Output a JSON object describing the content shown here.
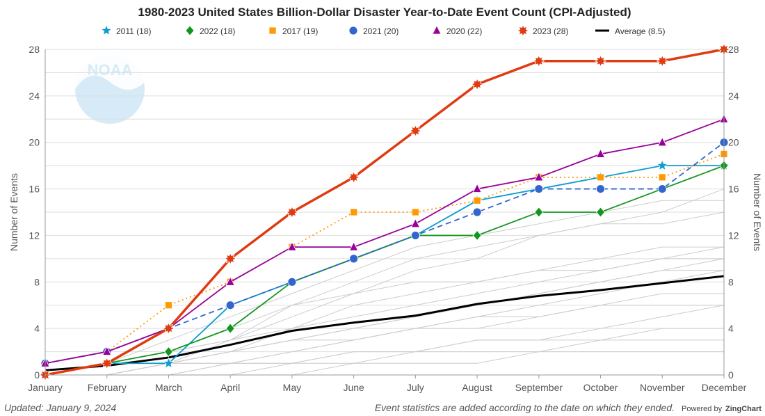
{
  "chart_data": {
    "type": "line",
    "title": "1980-2023 United States Billion-Dollar Disaster Year-to-Date Event Count (CPI-Adjusted)",
    "ylabel": "Number of Events",
    "ylabel_right": "Number of Events",
    "categories": [
      "January",
      "February",
      "March",
      "April",
      "May",
      "June",
      "July",
      "August",
      "September",
      "October",
      "November",
      "December"
    ],
    "ylim": [
      0,
      28
    ],
    "yticks": [
      0,
      4,
      8,
      12,
      16,
      20,
      24,
      28
    ],
    "grid": true,
    "legend_position": "top",
    "series": [
      {
        "name": "2011 (18)",
        "color": "#0c9ccf",
        "marker": "star",
        "dash": "solid",
        "values": [
          0,
          1,
          1,
          6,
          8,
          10,
          12,
          15,
          16,
          17,
          18,
          18
        ]
      },
      {
        "name": "2022 (18)",
        "color": "#14961e",
        "marker": "diamond",
        "dash": "solid",
        "values": [
          0,
          1,
          2,
          4,
          8,
          10,
          12,
          12,
          14,
          14,
          16,
          18
        ]
      },
      {
        "name": "2017 (19)",
        "color": "#ff9900",
        "marker": "square",
        "dash": "dotted",
        "values": [
          1,
          2,
          6,
          8,
          11,
          14,
          14,
          15,
          17,
          17,
          17,
          19
        ]
      },
      {
        "name": "2021 (20)",
        "color": "#3366cc",
        "marker": "circle",
        "dash": "dashed",
        "values": [
          1,
          2,
          4,
          6,
          8,
          10,
          12,
          14,
          16,
          16,
          16,
          20
        ]
      },
      {
        "name": "2020 (22)",
        "color": "#990099",
        "marker": "triangle",
        "dash": "solid",
        "values": [
          1,
          2,
          4,
          8,
          11,
          11,
          13,
          16,
          17,
          19,
          20,
          22
        ]
      },
      {
        "name": "2023 (28)",
        "color": "#e03a10",
        "marker": "burst",
        "dash": "solid",
        "values": [
          0,
          1,
          4,
          10,
          14,
          17,
          21,
          25,
          27,
          27,
          27,
          28
        ]
      },
      {
        "name": "Average (8.5)",
        "color": "#000000",
        "marker": "none",
        "dash": "solid",
        "values": [
          0.4,
          0.8,
          1.5,
          2.6,
          3.8,
          4.5,
          5.1,
          6.1,
          6.8,
          7.3,
          7.9,
          8.5
        ]
      }
    ],
    "background_series_color": "#cccccc",
    "background_series": [
      [
        0,
        0,
        1,
        2,
        3,
        4,
        5,
        6,
        7,
        8,
        9,
        10
      ],
      [
        0,
        1,
        2,
        3,
        5,
        7,
        9,
        10,
        12,
        13,
        14,
        16
      ],
      [
        0,
        1,
        3,
        5,
        7,
        9,
        11,
        12,
        13,
        14,
        15,
        15
      ],
      [
        0,
        0,
        1,
        3,
        6,
        8,
        10,
        11,
        12,
        13,
        13,
        14
      ],
      [
        0,
        1,
        1,
        2,
        4,
        6,
        7,
        8,
        9,
        10,
        11,
        11
      ],
      [
        0,
        0,
        0,
        1,
        2,
        3,
        4,
        5,
        6,
        7,
        8,
        9
      ],
      [
        0,
        0,
        1,
        1,
        2,
        3,
        4,
        4,
        5,
        6,
        7,
        7
      ],
      [
        0,
        1,
        2,
        4,
        6,
        7,
        8,
        8,
        9,
        9,
        10,
        10
      ],
      [
        0,
        0,
        0,
        0,
        1,
        2,
        2,
        3,
        3,
        4,
        5,
        6
      ],
      [
        0,
        0,
        1,
        1,
        1,
        2,
        2,
        3,
        3,
        3,
        4,
        4
      ],
      [
        0,
        1,
        2,
        3,
        4,
        5,
        6,
        7,
        8,
        9,
        10,
        11
      ],
      [
        0,
        0,
        0,
        1,
        1,
        1,
        2,
        2,
        2,
        3,
        3,
        3
      ],
      [
        0,
        0,
        1,
        2,
        3,
        3,
        4,
        5,
        5,
        6,
        6,
        6
      ],
      [
        0,
        1,
        1,
        2,
        3,
        4,
        5,
        6,
        7,
        8,
        9,
        9
      ],
      [
        0,
        0,
        0,
        0,
        0,
        1,
        1,
        1,
        2,
        2,
        2,
        2
      ]
    ]
  },
  "footer": {
    "updated": "Updated: January 9, 2024",
    "note": "Event statistics are added according to the date on which they ended.",
    "powered": "Powered by",
    "brand": "ZingChart"
  },
  "watermark": {
    "text": "NOAA",
    "color": "#bfe0f2"
  }
}
